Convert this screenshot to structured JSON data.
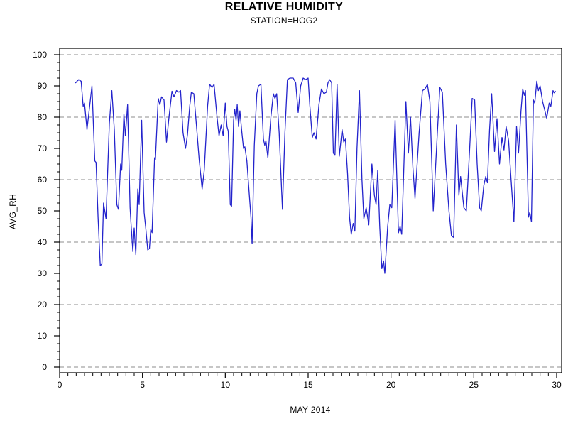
{
  "chart_data": {
    "type": "line",
    "title": "RELATIVE HUMIDITY",
    "subtitle": "STATION=HOG2",
    "xlabel": "MAY 2014",
    "ylabel": "AVG_RH",
    "xlim": [
      0,
      30
    ],
    "ylim": [
      0,
      100
    ],
    "x_major_ticks": [
      0,
      5,
      10,
      15,
      20,
      25,
      30
    ],
    "x_minor_step": 0.5,
    "y_major_ticks": [
      0,
      10,
      20,
      30,
      40,
      50,
      60,
      70,
      80,
      90,
      100
    ],
    "y_minor_step": 2.5,
    "grid_y_values": [
      0,
      20,
      40,
      60,
      80,
      100
    ],
    "grid_style": "dashed-horizontal",
    "legend": "none",
    "line_color": "#2323cc",
    "grid_color": "#8c8c8c",
    "axis_color": "#000000",
    "series": [
      {
        "name": "AVG_RH",
        "points": [
          [
            0.97,
            91
          ],
          [
            1.05,
            91.5
          ],
          [
            1.15,
            92
          ],
          [
            1.3,
            91.5
          ],
          [
            1.42,
            83.5
          ],
          [
            1.5,
            84.5
          ],
          [
            1.65,
            76
          ],
          [
            1.8,
            83
          ],
          [
            1.95,
            90
          ],
          [
            2.05,
            76
          ],
          [
            2.12,
            66
          ],
          [
            2.2,
            65.5
          ],
          [
            2.32,
            48
          ],
          [
            2.45,
            32.5
          ],
          [
            2.55,
            33
          ],
          [
            2.65,
            52.5
          ],
          [
            2.8,
            47.5
          ],
          [
            3.0,
            78
          ],
          [
            3.15,
            88.5
          ],
          [
            3.3,
            76
          ],
          [
            3.45,
            52
          ],
          [
            3.55,
            50.5
          ],
          [
            3.68,
            65
          ],
          [
            3.75,
            63
          ],
          [
            3.88,
            81
          ],
          [
            3.97,
            74
          ],
          [
            4.1,
            84
          ],
          [
            4.25,
            51
          ],
          [
            4.32,
            45
          ],
          [
            4.42,
            37
          ],
          [
            4.5,
            44.5
          ],
          [
            4.6,
            36
          ],
          [
            4.72,
            57
          ],
          [
            4.8,
            52
          ],
          [
            4.95,
            79
          ],
          [
            5.1,
            49.5
          ],
          [
            5.2,
            44.5
          ],
          [
            5.32,
            37.5
          ],
          [
            5.42,
            38
          ],
          [
            5.5,
            44
          ],
          [
            5.58,
            43
          ],
          [
            5.73,
            67
          ],
          [
            5.78,
            66.5
          ],
          [
            5.95,
            86
          ],
          [
            6.05,
            84
          ],
          [
            6.15,
            86.5
          ],
          [
            6.3,
            85.5
          ],
          [
            6.45,
            72
          ],
          [
            6.6,
            80
          ],
          [
            6.78,
            88.3
          ],
          [
            6.9,
            86.5
          ],
          [
            7.05,
            88.5
          ],
          [
            7.2,
            88
          ],
          [
            7.3,
            88.5
          ],
          [
            7.45,
            75
          ],
          [
            7.6,
            70
          ],
          [
            7.72,
            74.5
          ],
          [
            7.85,
            83.5
          ],
          [
            7.95,
            88
          ],
          [
            8.1,
            87.5
          ],
          [
            8.27,
            76.5
          ],
          [
            8.42,
            66.5
          ],
          [
            8.6,
            57
          ],
          [
            8.73,
            63
          ],
          [
            8.93,
            83.5
          ],
          [
            9.05,
            90.5
          ],
          [
            9.2,
            89.5
          ],
          [
            9.32,
            90.5
          ],
          [
            9.5,
            80
          ],
          [
            9.62,
            74
          ],
          [
            9.75,
            77.5
          ],
          [
            9.87,
            74
          ],
          [
            10.0,
            84.5
          ],
          [
            10.1,
            77
          ],
          [
            10.18,
            75.5
          ],
          [
            10.3,
            52
          ],
          [
            10.38,
            51.5
          ],
          [
            10.5,
            79
          ],
          [
            10.57,
            82.5
          ],
          [
            10.65,
            79
          ],
          [
            10.72,
            84
          ],
          [
            10.8,
            77
          ],
          [
            10.88,
            82
          ],
          [
            11.0,
            75
          ],
          [
            11.1,
            70
          ],
          [
            11.18,
            70.5
          ],
          [
            11.3,
            66
          ],
          [
            11.45,
            55
          ],
          [
            11.55,
            48
          ],
          [
            11.62,
            39.5
          ],
          [
            11.75,
            71
          ],
          [
            11.9,
            87.5
          ],
          [
            12.0,
            90
          ],
          [
            12.15,
            90.5
          ],
          [
            12.3,
            73
          ],
          [
            12.38,
            71
          ],
          [
            12.45,
            72.5
          ],
          [
            12.57,
            67
          ],
          [
            12.75,
            80
          ],
          [
            12.9,
            87.5
          ],
          [
            13.0,
            86
          ],
          [
            13.1,
            87.5
          ],
          [
            13.25,
            75
          ],
          [
            13.45,
            50.5
          ],
          [
            13.6,
            75
          ],
          [
            13.75,
            92
          ],
          [
            13.9,
            92.5
          ],
          [
            14.1,
            92.5
          ],
          [
            14.25,
            91
          ],
          [
            14.4,
            81.5
          ],
          [
            14.55,
            90
          ],
          [
            14.7,
            92.5
          ],
          [
            14.85,
            92
          ],
          [
            15.0,
            92.5
          ],
          [
            15.1,
            84
          ],
          [
            15.25,
            73.5
          ],
          [
            15.35,
            75
          ],
          [
            15.48,
            73
          ],
          [
            15.65,
            84
          ],
          [
            15.8,
            89
          ],
          [
            15.95,
            87.5
          ],
          [
            16.1,
            88
          ],
          [
            16.2,
            91
          ],
          [
            16.3,
            92
          ],
          [
            16.42,
            91
          ],
          [
            16.52,
            68.5
          ],
          [
            16.62,
            67.8
          ],
          [
            16.75,
            90.5
          ],
          [
            16.88,
            67.5
          ],
          [
            17.05,
            76
          ],
          [
            17.15,
            72
          ],
          [
            17.25,
            73
          ],
          [
            17.38,
            62
          ],
          [
            17.5,
            48
          ],
          [
            17.6,
            42.5
          ],
          [
            17.72,
            46
          ],
          [
            17.82,
            43.5
          ],
          [
            17.95,
            70
          ],
          [
            18.1,
            88.5
          ],
          [
            18.25,
            60
          ],
          [
            18.36,
            47.5
          ],
          [
            18.5,
            51
          ],
          [
            18.66,
            45.5
          ],
          [
            18.85,
            65
          ],
          [
            19.0,
            55
          ],
          [
            19.1,
            52
          ],
          [
            19.2,
            63
          ],
          [
            19.32,
            45
          ],
          [
            19.45,
            31.5
          ],
          [
            19.55,
            34
          ],
          [
            19.63,
            30
          ],
          [
            19.8,
            45
          ],
          [
            19.93,
            52
          ],
          [
            20.05,
            51
          ],
          [
            20.25,
            79
          ],
          [
            20.45,
            43
          ],
          [
            20.55,
            45
          ],
          [
            20.65,
            42.5
          ],
          [
            20.9,
            85
          ],
          [
            21.05,
            68.5
          ],
          [
            21.18,
            80
          ],
          [
            21.32,
            64
          ],
          [
            21.45,
            54
          ],
          [
            21.7,
            75
          ],
          [
            21.9,
            88.5
          ],
          [
            22.05,
            89
          ],
          [
            22.2,
            90.5
          ],
          [
            22.35,
            85
          ],
          [
            22.55,
            50
          ],
          [
            22.8,
            75
          ],
          [
            22.95,
            89.5
          ],
          [
            23.1,
            88
          ],
          [
            23.3,
            65
          ],
          [
            23.5,
            50
          ],
          [
            23.65,
            42
          ],
          [
            23.78,
            41.5
          ],
          [
            23.95,
            77.5
          ],
          [
            24.1,
            55
          ],
          [
            24.2,
            61
          ],
          [
            24.4,
            51
          ],
          [
            24.55,
            50
          ],
          [
            24.75,
            70
          ],
          [
            24.9,
            86
          ],
          [
            25.05,
            85.5
          ],
          [
            25.2,
            65
          ],
          [
            25.35,
            51
          ],
          [
            25.45,
            50
          ],
          [
            25.6,
            58
          ],
          [
            25.72,
            61
          ],
          [
            25.82,
            59
          ],
          [
            25.95,
            76
          ],
          [
            26.08,
            87.5
          ],
          [
            26.25,
            69
          ],
          [
            26.4,
            79.5
          ],
          [
            26.55,
            65
          ],
          [
            26.7,
            73.5
          ],
          [
            26.82,
            69.5
          ],
          [
            26.95,
            77
          ],
          [
            27.1,
            72.5
          ],
          [
            27.25,
            60
          ],
          [
            27.42,
            46.5
          ],
          [
            27.58,
            77
          ],
          [
            27.7,
            68.5
          ],
          [
            27.85,
            82
          ],
          [
            27.95,
            89
          ],
          [
            28.05,
            87
          ],
          [
            28.12,
            88.5
          ],
          [
            28.3,
            48
          ],
          [
            28.38,
            49.5
          ],
          [
            28.48,
            46.5
          ],
          [
            28.6,
            85.5
          ],
          [
            28.68,
            84.5
          ],
          [
            28.8,
            91.5
          ],
          [
            28.9,
            88.5
          ],
          [
            29.0,
            90
          ],
          [
            29.15,
            85
          ],
          [
            29.4,
            79.7
          ],
          [
            29.55,
            84.5
          ],
          [
            29.65,
            83.5
          ],
          [
            29.78,
            88.5
          ],
          [
            29.85,
            87.8
          ],
          [
            29.92,
            88.3
          ]
        ]
      }
    ]
  }
}
